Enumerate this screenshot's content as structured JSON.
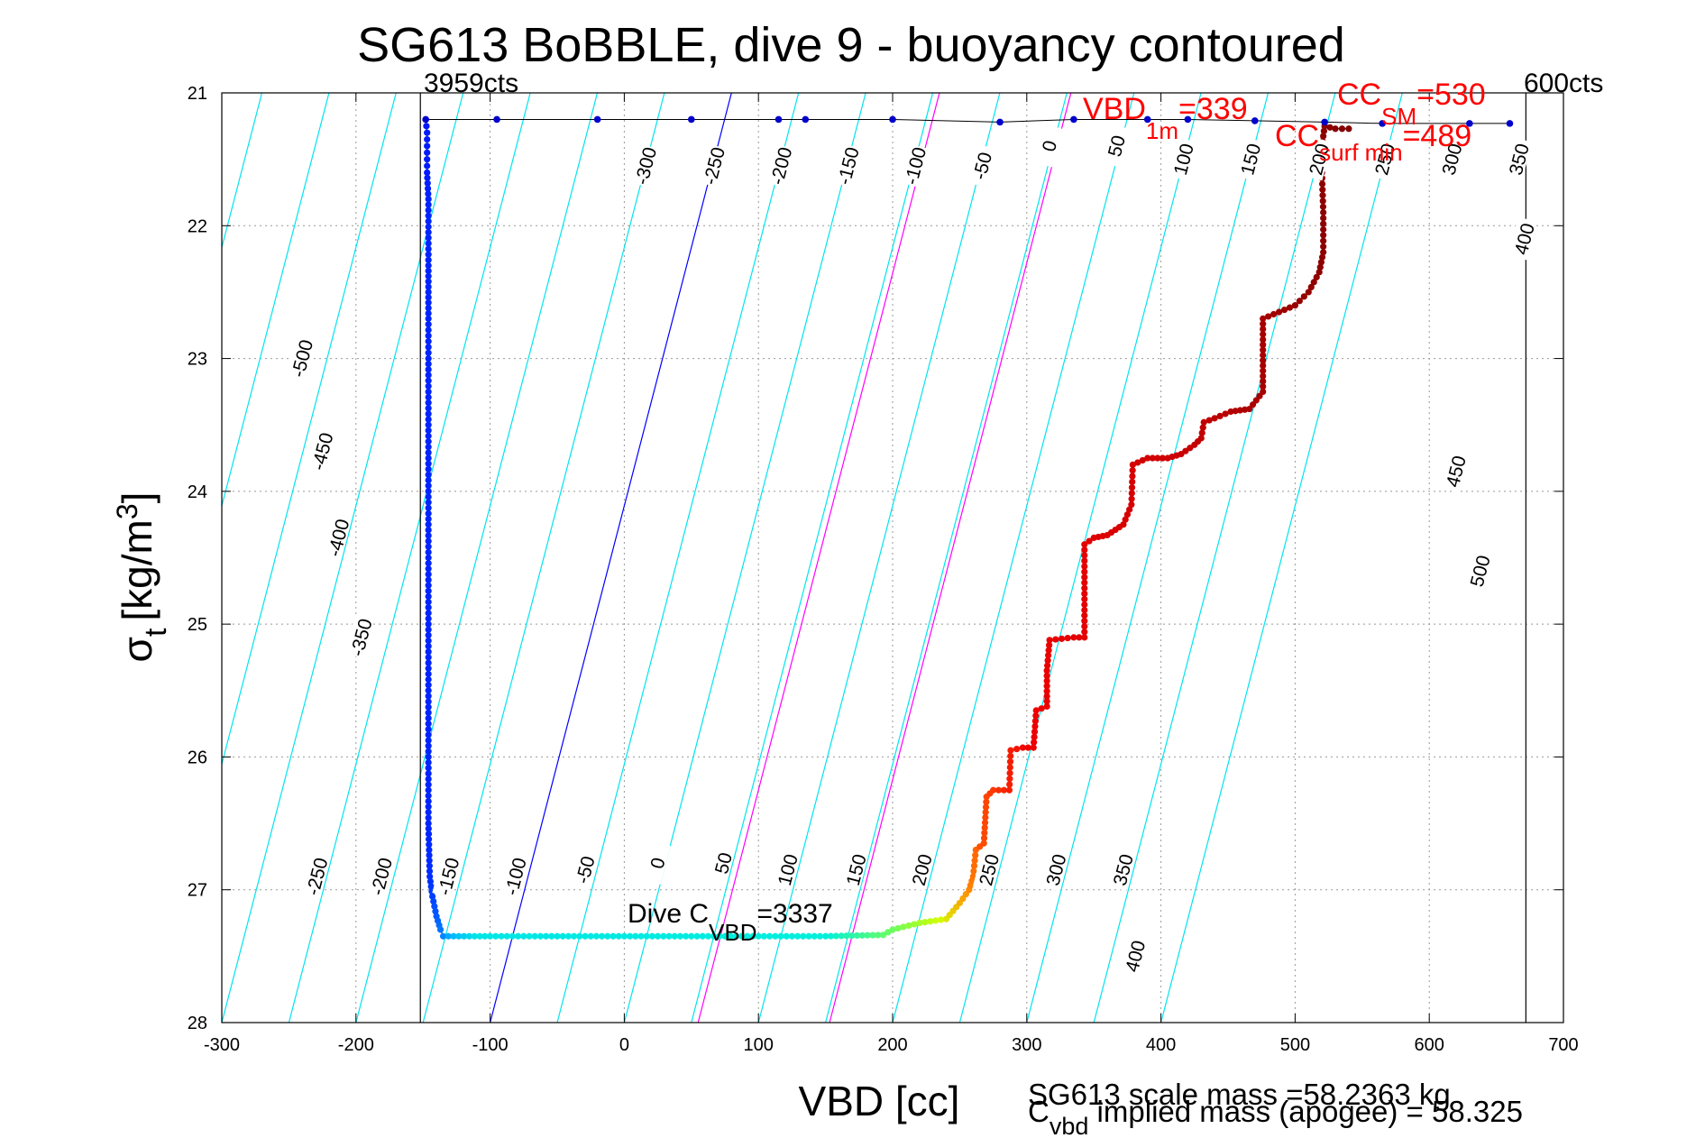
{
  "chart_data": {
    "type": "scatter",
    "title": "SG613 BoBBLE, dive 9 - buoyancy contoured",
    "xlabel": "VBD [cc]",
    "ylabel_main": "σ",
    "ylabel_sub": "t",
    "ylabel_units": "[kg/m",
    "ylabel_exp": "3",
    "ylabel_close": "]",
    "xlim": [
      -300,
      700
    ],
    "ylim": [
      21,
      28
    ],
    "y_reversed": true,
    "grid": true,
    "x_ticks": [
      -300,
      -200,
      -100,
      0,
      100,
      200,
      300,
      400,
      500,
      600,
      700
    ],
    "y_ticks": [
      21,
      22,
      23,
      24,
      25,
      26,
      27,
      28
    ],
    "limit_lines": {
      "left_vbd": -152,
      "right_vbd": 672,
      "left_label": "3959cts",
      "right_label": "600cts"
    },
    "buoyancy_contours": {
      "levels": [
        -500,
        -450,
        -400,
        -350,
        -300,
        -250,
        -200,
        -150,
        -100,
        -50,
        0,
        50,
        100,
        150,
        200,
        250,
        300,
        350,
        400,
        450,
        500
      ],
      "vbd_at_top": [
        -740,
        -690,
        -640,
        -590,
        -540,
        -490,
        -440,
        -390,
        -340,
        -290,
        -240,
        -190,
        -140,
        -90,
        -40,
        10,
        60,
        110,
        160,
        210,
        260
      ],
      "vbd_at_bottom": [
        -600,
        -550,
        -500,
        -450,
        -400,
        -350,
        -300,
        -250,
        -200,
        -150,
        -100,
        -50,
        0,
        50,
        100,
        150,
        200,
        250,
        300,
        350,
        400
      ],
      "slope_vbd_per_sigma": 25.7,
      "colors": {
        "default": "#00e5ee",
        "zero": "#0000ff",
        "highlight": "#ff00ff"
      },
      "highlight_x_at_bottom": [
        55,
        153
      ],
      "zero_x_at_bottom": -47,
      "labels": [
        {
          "text": "-500",
          "x": -240,
          "y": 23.0
        },
        {
          "text": "-450",
          "x": -225,
          "y": 23.7
        },
        {
          "text": "-400",
          "x": -213,
          "y": 24.35
        },
        {
          "text": "-350",
          "x": -196,
          "y": 25.1
        },
        {
          "text": "-300",
          "x": 16,
          "y": 21.55
        },
        {
          "text": "-250",
          "x": 67,
          "y": 21.55
        },
        {
          "text": "-200",
          "x": 117,
          "y": 21.55
        },
        {
          "text": "-150",
          "x": 167,
          "y": 21.55
        },
        {
          "text": "-100",
          "x": 217,
          "y": 21.55
        },
        {
          "text": "-50",
          "x": 267,
          "y": 21.55
        },
        {
          "text": "0",
          "x": 317,
          "y": 21.4
        },
        {
          "text": "50",
          "x": 367,
          "y": 21.4
        },
        {
          "text": "100",
          "x": 417,
          "y": 21.5
        },
        {
          "text": "150",
          "x": 467,
          "y": 21.5
        },
        {
          "text": "200",
          "x": 518,
          "y": 21.5
        },
        {
          "text": "250",
          "x": 567,
          "y": 21.5
        },
        {
          "text": "300",
          "x": 617,
          "y": 21.5
        },
        {
          "text": "350",
          "x": 667,
          "y": 21.5
        },
        {
          "text": "400",
          "x": 671,
          "y": 22.1
        },
        {
          "text": "450",
          "x": 620,
          "y": 23.85
        },
        {
          "text": "500",
          "x": 638,
          "y": 24.6
        },
        {
          "text": "-250",
          "x": -229,
          "y": 26.9
        },
        {
          "text": "-200",
          "x": -181,
          "y": 26.9
        },
        {
          "text": "-150",
          "x": -131,
          "y": 26.9
        },
        {
          "text": "-100",
          "x": -81,
          "y": 26.9
        },
        {
          "text": "-50",
          "x": -29,
          "y": 26.85
        },
        {
          "text": "0",
          "x": 25,
          "y": 26.8
        },
        {
          "text": "50",
          "x": 74,
          "y": 26.8
        },
        {
          "text": "100",
          "x": 122,
          "y": 26.85
        },
        {
          "text": "150",
          "x": 173,
          "y": 26.85
        },
        {
          "text": "200",
          "x": 222,
          "y": 26.85
        },
        {
          "text": "250",
          "x": 272,
          "y": 26.85
        },
        {
          "text": "300",
          "x": 322,
          "y": 26.85
        },
        {
          "text": "350",
          "x": 372,
          "y": 26.85
        },
        {
          "text": "400",
          "x": 381,
          "y": 27.5
        }
      ]
    },
    "profile": {
      "dive": [
        [
          -148,
          21.2
        ],
        [
          -147,
          21.3
        ],
        [
          -147,
          21.4
        ],
        [
          -147,
          21.5
        ],
        [
          -147,
          21.6
        ],
        [
          -146,
          21.8
        ],
        [
          -146,
          22.3
        ],
        [
          -146,
          22.7
        ],
        [
          -146,
          23.0
        ],
        [
          -146,
          23.5
        ],
        [
          -146,
          24.0
        ],
        [
          -146,
          24.5
        ],
        [
          -146,
          25.0
        ],
        [
          -146,
          25.5
        ],
        [
          -146,
          26.0
        ],
        [
          -146,
          26.5
        ],
        [
          -145,
          26.9
        ],
        [
          -143,
          27.05
        ],
        [
          -140,
          27.2
        ],
        [
          -137,
          27.3
        ],
        [
          -135,
          27.35
        ],
        [
          -100,
          27.35
        ],
        [
          -50,
          27.35
        ],
        [
          0,
          27.35
        ],
        [
          50,
          27.35
        ],
        [
          100,
          27.35
        ],
        [
          150,
          27.35
        ],
        [
          193,
          27.34
        ],
        [
          200,
          27.3
        ],
        [
          220,
          27.25
        ],
        [
          240,
          27.22
        ],
        [
          250,
          27.1
        ],
        [
          257,
          27.0
        ],
        [
          260,
          26.9
        ],
        [
          262,
          26.7
        ],
        [
          268,
          26.65
        ],
        [
          270,
          26.3
        ],
        [
          275,
          26.25
        ],
        [
          287,
          26.25
        ],
        [
          288,
          25.95
        ],
        [
          297,
          25.93
        ],
        [
          305,
          25.93
        ],
        [
          307,
          25.65
        ],
        [
          315,
          25.62
        ],
        [
          315,
          25.35
        ],
        [
          317,
          25.12
        ],
        [
          335,
          25.1
        ],
        [
          343,
          25.1
        ],
        [
          343,
          24.4
        ],
        [
          350,
          24.35
        ],
        [
          360,
          24.33
        ],
        [
          372,
          24.25
        ],
        [
          378,
          24.1
        ],
        [
          379,
          23.8
        ],
        [
          390,
          23.75
        ],
        [
          405,
          23.75
        ],
        [
          415,
          23.72
        ],
        [
          425,
          23.65
        ],
        [
          430,
          23.6
        ],
        [
          432,
          23.48
        ],
        [
          440,
          23.45
        ],
        [
          452,
          23.4
        ],
        [
          466,
          23.38
        ],
        [
          476,
          23.25
        ],
        [
          476,
          22.7
        ],
        [
          488,
          22.65
        ],
        [
          500,
          22.6
        ],
        [
          510,
          22.5
        ],
        [
          518,
          22.35
        ],
        [
          521,
          22.2
        ],
        [
          521,
          21.9
        ],
        [
          520,
          21.6
        ],
        [
          520,
          21.4
        ],
        [
          522,
          21.25
        ],
        [
          530,
          21.27
        ],
        [
          540,
          21.27
        ]
      ],
      "climb": [
        [
          -148,
          21.2
        ],
        [
          -95,
          21.2
        ],
        [
          -20,
          21.2
        ],
        [
          50,
          21.2
        ],
        [
          115,
          21.2
        ],
        [
          135,
          21.2
        ],
        [
          200,
          21.2
        ],
        [
          280,
          21.22
        ],
        [
          335,
          21.2
        ],
        [
          390,
          21.2
        ],
        [
          420,
          21.2
        ],
        [
          470,
          21.21
        ],
        [
          522,
          21.22
        ],
        [
          565,
          21.23
        ],
        [
          630,
          21.23
        ],
        [
          660,
          21.23
        ]
      ]
    },
    "annotations": {
      "vbd_1m_base": "VBD",
      "vbd_1m_sub": "1m",
      "vbd_1m_val": "=339",
      "cc_sm_base": "CC",
      "cc_sm_sub": "SM",
      "cc_sm_val": "=530",
      "cc_surf_base": "CC",
      "cc_surf_sub": "surf min",
      "cc_surf_val": "=489",
      "dive_cvbd_base": "Dive C",
      "dive_cvbd_sub": "VBD",
      "dive_cvbd_val": "=3337",
      "scale_mass": "SG613 scale mass =58.2363 kg",
      "implied_base": "C",
      "implied_sub": "vbd",
      "implied_val": " implied mass (apogee) = 58.325"
    }
  }
}
